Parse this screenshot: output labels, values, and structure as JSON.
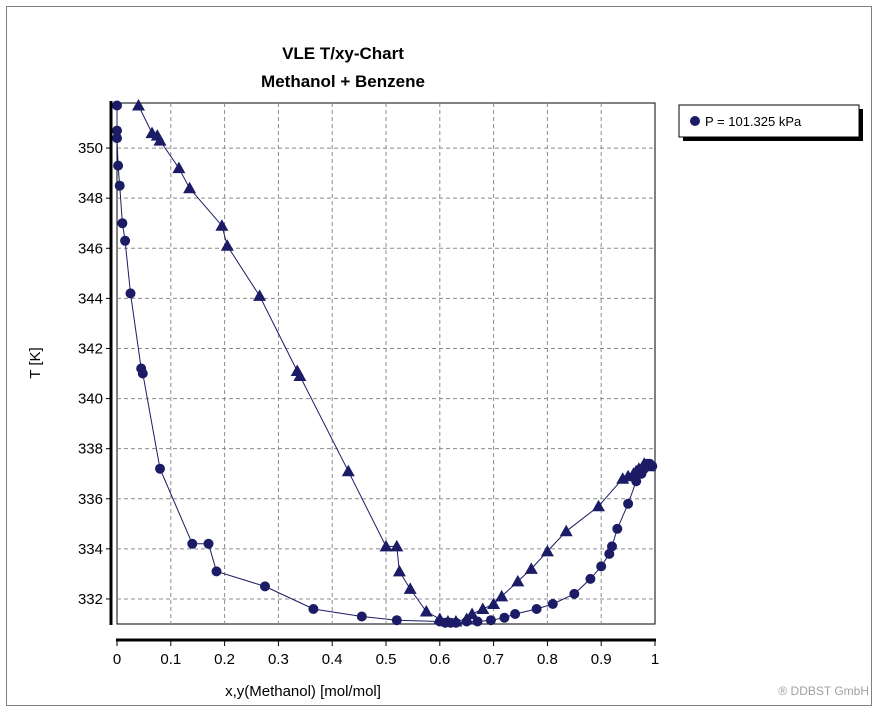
{
  "chart_data": {
    "type": "scatter",
    "title": "VLE T/xy-Chart",
    "subtitle": "Methanol + Benzene",
    "xlabel": "x,y(Methanol) [mol/mol]",
    "ylabel": "T [K]",
    "xlim": [
      0,
      1
    ],
    "ylim": [
      331,
      351.8
    ],
    "xticks": [
      "0",
      "0.1",
      "0.2",
      "0.3",
      "0.4",
      "0.5",
      "0.6",
      "0.7",
      "0.8",
      "0.9",
      "1"
    ],
    "yticks": [
      "332",
      "334",
      "336",
      "338",
      "340",
      "342",
      "344",
      "346",
      "348",
      "350"
    ],
    "grid": true,
    "legend_position": "top-right",
    "series": [
      {
        "name": "P = 101.325 kPa",
        "color": "#1c1c66",
        "liquid_x": [
          0,
          0,
          0,
          0.002,
          0.005,
          0.01,
          0.015,
          0.025,
          0.045,
          0.048,
          0.08,
          0.14,
          0.17,
          0.185,
          0.275,
          0.365,
          0.455,
          0.52,
          0.6,
          0.61,
          0.62,
          0.63,
          0.65,
          0.67,
          0.695,
          0.72,
          0.74,
          0.78,
          0.81,
          0.85,
          0.88,
          0.9,
          0.915,
          0.92,
          0.93,
          0.95,
          0.965,
          0.975,
          0.98,
          0.985,
          0.99,
          0.995
        ],
        "liquid_y": [
          351.7,
          350.7,
          350.4,
          349.3,
          348.5,
          347.0,
          346.3,
          344.2,
          341.2,
          341.0,
          337.2,
          334.2,
          334.2,
          333.1,
          332.5,
          331.6,
          331.3,
          331.15,
          331.1,
          331.05,
          331.05,
          331.05,
          331.1,
          331.1,
          331.15,
          331.25,
          331.4,
          331.6,
          331.8,
          332.2,
          332.8,
          333.3,
          333.8,
          334.1,
          334.8,
          335.8,
          336.7,
          337.0,
          337.2,
          337.4,
          337.4,
          337.3
        ],
        "vapor_x": [
          0.04,
          0.065,
          0.075,
          0.08,
          0.115,
          0.135,
          0.195,
          0.205,
          0.265,
          0.335,
          0.34,
          0.43,
          0.5,
          0.52,
          0.525,
          0.545,
          0.575,
          0.6,
          0.615,
          0.63,
          0.65,
          0.66,
          0.68,
          0.7,
          0.715,
          0.745,
          0.77,
          0.8,
          0.835,
          0.895,
          0.94,
          0.95,
          0.96,
          0.965,
          0.97,
          0.98,
          0.99
        ],
        "vapor_y": [
          351.7,
          350.6,
          350.5,
          350.3,
          349.2,
          348.4,
          346.9,
          346.1,
          344.1,
          341.1,
          340.9,
          337.1,
          334.1,
          334.1,
          333.1,
          332.4,
          331.5,
          331.2,
          331.1,
          331.1,
          331.2,
          331.4,
          331.6,
          331.8,
          332.1,
          332.7,
          333.2,
          333.9,
          334.7,
          335.7,
          336.8,
          336.9,
          337.0,
          337.1,
          337.2,
          337.4,
          337.3
        ]
      }
    ]
  },
  "copyright": "® DDBST GmbH"
}
